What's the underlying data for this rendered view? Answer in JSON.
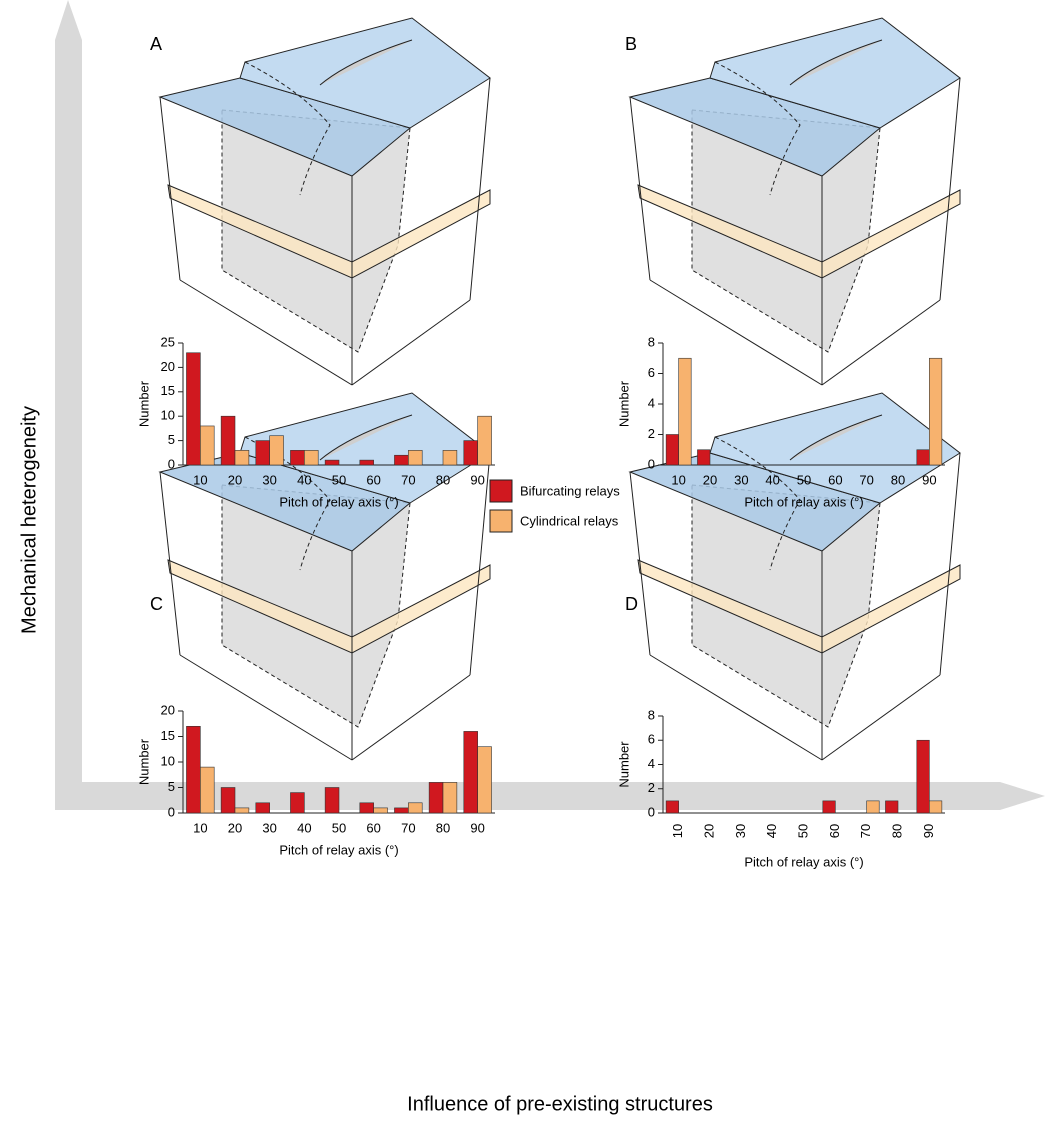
{
  "figure": {
    "y_label": "Mechanical heterogeneity",
    "x_label": "Influence of pre-existing structures"
  },
  "chart_data": [
    {
      "type": "bar",
      "title": "A",
      "x_label": "Pitch of relay axis (°)",
      "y_label": "Number",
      "categories": [
        10,
        20,
        30,
        40,
        50,
        60,
        70,
        80,
        90
      ],
      "series": [
        {
          "name": "Bifurcating relays",
          "color": "#d0181f",
          "values": [
            23,
            10,
            5,
            3,
            1,
            1,
            2,
            0,
            5
          ]
        },
        {
          "name": "Cylindrical relays",
          "color": "#f7b26e",
          "values": [
            8,
            3,
            6,
            3,
            0,
            0,
            3,
            3,
            10
          ]
        }
      ],
      "ylim": [
        0,
        25
      ],
      "yticks": [
        0,
        5,
        10,
        15,
        20,
        25
      ]
    },
    {
      "type": "bar",
      "title": "B",
      "x_label": "Pitch of relay axis (°)",
      "y_label": "Number",
      "categories": [
        10,
        20,
        30,
        40,
        50,
        60,
        70,
        80,
        90
      ],
      "series": [
        {
          "name": "Bifurcating relays",
          "color": "#d0181f",
          "values": [
            2,
            1,
            0,
            0,
            0,
            0,
            0,
            0,
            1
          ]
        },
        {
          "name": "Cylindrical relays",
          "color": "#f7b26e",
          "values": [
            7,
            0,
            0,
            0,
            0,
            0,
            0,
            0,
            7
          ]
        }
      ],
      "ylim": [
        0,
        8
      ],
      "yticks": [
        0,
        2,
        4,
        6,
        8
      ]
    },
    {
      "type": "bar",
      "title": "C",
      "x_label": "Pitch of relay axis (°)",
      "y_label": "Number",
      "categories": [
        10,
        20,
        30,
        40,
        50,
        60,
        70,
        80,
        90
      ],
      "series": [
        {
          "name": "Bifurcating relays",
          "color": "#d0181f",
          "values": [
            17,
            5,
            2,
            4,
            5,
            2,
            1,
            6,
            16
          ]
        },
        {
          "name": "Cylindrical relays",
          "color": "#f7b26e",
          "values": [
            9,
            1,
            0,
            0,
            0,
            1,
            2,
            6,
            13
          ]
        }
      ],
      "ylim": [
        0,
        20
      ],
      "yticks": [
        0,
        5,
        10,
        15,
        20
      ]
    },
    {
      "type": "bar",
      "title": "D",
      "x_label": "Pitch of relay axis (°)",
      "y_label": "Number",
      "categories": [
        10,
        20,
        30,
        40,
        50,
        60,
        70,
        80,
        90
      ],
      "series": [
        {
          "name": "Bifurcating relays",
          "color": "#d0181f",
          "values": [
            1,
            0,
            0,
            0,
            0,
            1,
            0,
            1,
            6
          ]
        },
        {
          "name": "Cylindrical relays",
          "color": "#f7b26e",
          "values": [
            0,
            0,
            0,
            0,
            0,
            0,
            1,
            0,
            1
          ]
        }
      ],
      "ylim": [
        0,
        8
      ],
      "yticks": [
        0,
        2,
        4,
        6,
        8
      ]
    }
  ]
}
